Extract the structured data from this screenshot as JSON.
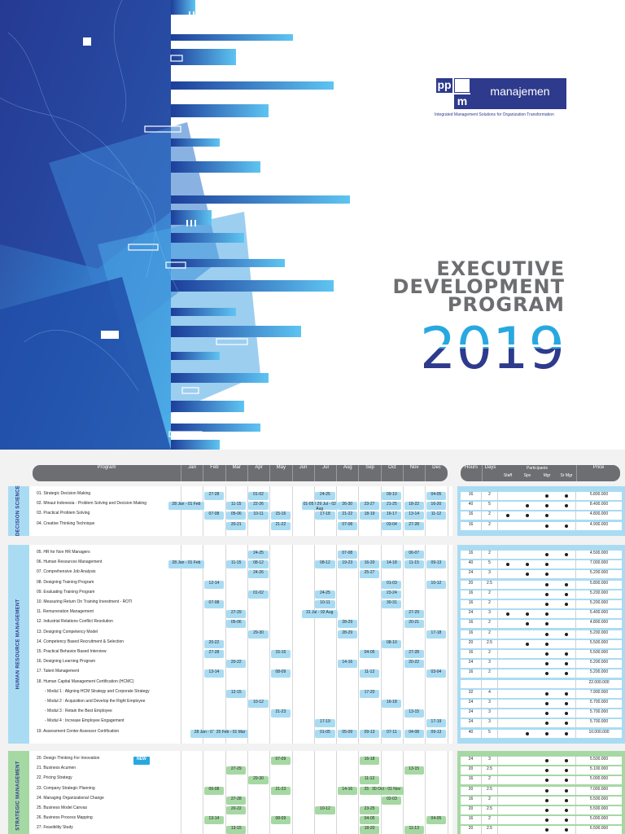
{
  "brand": {
    "logo_top": "pp",
    "logo_bottom": "m",
    "name": "manajemen",
    "tagline": "Integrated Management Solutions for Organization Transformation"
  },
  "title": {
    "line1": "EXECUTIVE",
    "line2": "DEVELOPMENT",
    "line3": "PROGRAM",
    "year": "2019"
  },
  "colors": {
    "navy": "#2e3a8c",
    "blue": "#29a8e0",
    "light_blue": "#a9dcf3",
    "green": "#a6d8a4",
    "grey_header": "#6d6e71"
  },
  "header": {
    "program": "Program",
    "months": [
      "Jan",
      "Feb",
      "Mar",
      "Apr",
      "May",
      "Jun",
      "Jul",
      "Aug",
      "Sep",
      "Oct",
      "Nov",
      "Dec"
    ],
    "hours": "Hours",
    "days": "Days",
    "participants": "Participants",
    "staff": "Staff",
    "spv": "Spv",
    "mgr": "Mgr",
    "srmgr": "Sr Mgr",
    "price": "Price"
  },
  "sections": [
    {
      "name": "DECISION SCIENCE",
      "rows": [
        {
          "name": "01. Strategic Decision Making",
          "dates": {
            "2": "27-28",
            "4": "01-02",
            "7": "24-25",
            "10": "09-10",
            "12": "04-05"
          },
          "hours": "16",
          "days": "2",
          "p": [
            0,
            0,
            1,
            1
          ],
          "price": "5.800.000"
        },
        {
          "name": "02. Minaut Indonesia - Problem Solving and Decision Making",
          "dates": {
            "1": "28 Jan - 01 Feb",
            "3": "11-15",
            "4": "22-26",
            "7": "01-05 / 29 Jul - 02 Aug",
            "8": "26-30",
            "9": "23-27",
            "10": "21-25",
            "11": "18-22",
            "12": "16-20"
          },
          "hours": "40",
          "days": "5",
          "p": [
            0,
            1,
            1,
            1
          ],
          "price": "8.400.000"
        },
        {
          "name": "03. Practical Problem Solving",
          "dates": {
            "2": "07-08",
            "3": "05-06",
            "4": "10-11",
            "5": "15-16",
            "7": "17-18",
            "8": "21-22",
            "9": "18-19",
            "10": "16-17",
            "11": "13-14",
            "12": "11-12"
          },
          "hours": "16",
          "days": "2",
          "p": [
            1,
            1,
            1,
            0
          ],
          "price": "4.800.000"
        },
        {
          "name": "04. Creative Thinking Technique",
          "dates": {
            "3": "20-21",
            "5": "21-22",
            "8": "07-08",
            "10": "03-04",
            "11": "27-28"
          },
          "hours": "16",
          "days": "2",
          "p": [
            0,
            0,
            1,
            1
          ],
          "price": "4.900.000"
        }
      ]
    },
    {
      "name": "HUMAN RESOURCE MANAGEMENT",
      "rows": [
        {
          "name": "05. HR for Non HR Managers",
          "dates": {
            "4": "24-25",
            "8": "07-08",
            "11": "06-07"
          },
          "hours": "16",
          "days": "2",
          "p": [
            0,
            0,
            1,
            1
          ],
          "price": "4.500.000"
        },
        {
          "name": "06. Human Resources Management",
          "dates": {
            "1": "28 Jan - 01 Feb",
            "3": "11-15",
            "4": "08-12",
            "7": "08-12",
            "8": "19-23",
            "9": "16-20",
            "10": "14-18",
            "11": "11-15",
            "12": "09-13"
          },
          "hours": "40",
          "days": "5",
          "p": [
            1,
            1,
            1,
            0
          ],
          "price": "7.000.000"
        },
        {
          "name": "07. Comprehensive Job Analysis",
          "dates": {
            "4": "24-26",
            "9": "25-27"
          },
          "hours": "24",
          "days": "3",
          "p": [
            0,
            1,
            1,
            0
          ],
          "price": "5.200.000"
        },
        {
          "name": "08. Designing Training Program",
          "dates": {
            "2": "12-14",
            "10": "01-03",
            "12": "10-12"
          },
          "hours": "20",
          "days": "2.5",
          "p": [
            0,
            0,
            1,
            1
          ],
          "price": "5.800.000"
        },
        {
          "name": "09. Evaluating Training Program",
          "dates": {
            "4": "01-02",
            "7": "24-25",
            "10": "23-24"
          },
          "hours": "16",
          "days": "2",
          "p": [
            0,
            0,
            1,
            1
          ],
          "price": "5.200.000"
        },
        {
          "name": "10. Measuring Return On Training Investment - ROTI",
          "dates": {
            "2": "07-08",
            "7": "10-11",
            "10": "30-31"
          },
          "hours": "16",
          "days": "2",
          "p": [
            0,
            0,
            1,
            1
          ],
          "price": "5.200.000"
        },
        {
          "name": "11. Remuneration Management",
          "dates": {
            "3": "27-29",
            "7": "31 Jul - 02 Aug",
            "11": "27-29"
          },
          "hours": "24",
          "days": "3",
          "p": [
            1,
            1,
            1,
            0
          ],
          "price": "5.400.000"
        },
        {
          "name": "12. Industrial Relations Conflict Resolution",
          "dates": {
            "3": "05-06",
            "8": "28-29",
            "11": "20-21"
          },
          "hours": "16",
          "days": "2",
          "p": [
            0,
            1,
            1,
            0
          ],
          "price": "4.800.000"
        },
        {
          "name": "13. Designing Competency Model",
          "dates": {
            "4": "29-30",
            "8": "28-29",
            "12": "17-18"
          },
          "hours": "16",
          "days": "2",
          "p": [
            0,
            0,
            1,
            1
          ],
          "price": "5.200.000"
        },
        {
          "name": "14. Competency Based Recruitment & Selection",
          "dates": {
            "2": "20-22",
            "10": "08-10"
          },
          "hours": "20",
          "days": "2.5",
          "p": [
            0,
            1,
            1,
            0
          ],
          "price": "5.500.000"
        },
        {
          "name": "15. Practical Behavior Based Interview",
          "dates": {
            "2": "27-28",
            "5": "15-16",
            "9": "04-05",
            "11": "27-28"
          },
          "hours": "16",
          "days": "2",
          "p": [
            0,
            0,
            1,
            1
          ],
          "price": "5.500.000"
        },
        {
          "name": "16. Designing Learning Program",
          "dates": {
            "3": "20-22",
            "8": "14-16",
            "11": "20-22"
          },
          "hours": "24",
          "days": "3",
          "p": [
            0,
            0,
            1,
            1
          ],
          "price": "5.200.000"
        },
        {
          "name": "17. Talent Management",
          "dates": {
            "2": "13-14",
            "5": "08-09",
            "9": "11-12",
            "12": "03-04"
          },
          "hours": "16",
          "days": "2",
          "p": [
            0,
            0,
            1,
            1
          ],
          "price": "5.200.000"
        },
        {
          "name": "18. Human Capital Management Certification (HCMC)",
          "dates": {},
          "hours": "",
          "days": "",
          "p": [
            0,
            0,
            0,
            0
          ],
          "price": "22.000.000"
        },
        {
          "name": "- Modul 1 : Aligning HCM Strategy and Corporate Strategy",
          "indent": true,
          "dates": {
            "3": "12-15",
            "9": "17-20"
          },
          "hours": "32",
          "days": "4",
          "p": [
            0,
            0,
            1,
            1
          ],
          "price": "7.900.000"
        },
        {
          "name": "- Modul 2 : Acquisition and Develop the Right Employee",
          "indent": true,
          "dates": {
            "4": "10-12",
            "10": "16-18"
          },
          "hours": "24",
          "days": "3",
          "p": [
            0,
            0,
            1,
            1
          ],
          "price": "5.700.000"
        },
        {
          "name": "- Modul 3 : Retain the Best Employee",
          "indent": true,
          "dates": {
            "5": "21-23",
            "11": "13-15"
          },
          "hours": "24",
          "days": "3",
          "p": [
            0,
            0,
            1,
            1
          ],
          "price": "5.700.000"
        },
        {
          "name": "- Modul 4 : Increase Employee Engagement",
          "indent": true,
          "dates": {
            "7": "17-19",
            "12": "17-19"
          },
          "hours": "24",
          "days": "3",
          "p": [
            0,
            0,
            1,
            1
          ],
          "price": "5.700.000"
        },
        {
          "name": "19. Assessment Center Assessor Certification",
          "dates": {
            "2": "28 Jan - 01 Feb",
            "3": "25 Feb - 01 Mar",
            "7": "01-05",
            "8": "05-09",
            "9": "09-13",
            "10": "07-11",
            "11": "04-08",
            "12": "09-13"
          },
          "hours": "40",
          "days": "5",
          "p": [
            0,
            1,
            1,
            1
          ],
          "price": "10.000.000"
        }
      ]
    },
    {
      "name": "STRATEGIC MANAGEMENT",
      "rows": [
        {
          "name": "20. Design Thinking For Innovation",
          "new": "NEW",
          "dates": {
            "5": "07-09",
            "9": "16-18"
          },
          "hours": "24",
          "days": "3",
          "p": [
            0,
            0,
            1,
            1
          ],
          "price": "5.500.000"
        },
        {
          "name": "21. Business Acumen",
          "dates": {
            "3": "27-29",
            "11": "13-15"
          },
          "hours": "20",
          "days": "2.5",
          "p": [
            0,
            0,
            1,
            1
          ],
          "price": "5.100.000"
        },
        {
          "name": "22. Pricing Strategy",
          "dates": {
            "4": "29-30",
            "9": "11-12"
          },
          "hours": "16",
          "days": "2",
          "p": [
            0,
            0,
            1,
            1
          ],
          "price": "5.000.000"
        },
        {
          "name": "23. Company Strategic Planning",
          "dates": {
            "2": "06-08",
            "5": "21-23",
            "8": "14-16",
            "9": "25-27",
            "10": "30 Oct - 01 Nov"
          },
          "hours": "20",
          "days": "2.5",
          "p": [
            0,
            0,
            1,
            1
          ],
          "price": "7.000.000"
        },
        {
          "name": "24. Managing Organizational Change",
          "dates": {
            "3": "27-28",
            "10": "02-03"
          },
          "hours": "16",
          "days": "2",
          "p": [
            0,
            0,
            1,
            1
          ],
          "price": "5.500.000"
        },
        {
          "name": "25. Business Model Canvas",
          "dates": {
            "3": "20-22",
            "7": "10-12",
            "9": "23-25"
          },
          "hours": "20",
          "days": "2.5",
          "p": [
            0,
            0,
            1,
            1
          ],
          "price": "5.500.000"
        },
        {
          "name": "26. Business Process Mapping",
          "dates": {
            "2": "13-14",
            "5": "08-09",
            "9": "04-05",
            "12": "04-05"
          },
          "hours": "16",
          "days": "2",
          "p": [
            0,
            0,
            1,
            1
          ],
          "price": "5.000.000"
        },
        {
          "name": "27. Feasibility Study",
          "dates": {
            "3": "13-15",
            "9": "18-20",
            "11": "11-13"
          },
          "hours": "20",
          "days": "2.5",
          "p": [
            0,
            0,
            1,
            1
          ],
          "price": "6.500.000"
        }
      ]
    }
  ]
}
